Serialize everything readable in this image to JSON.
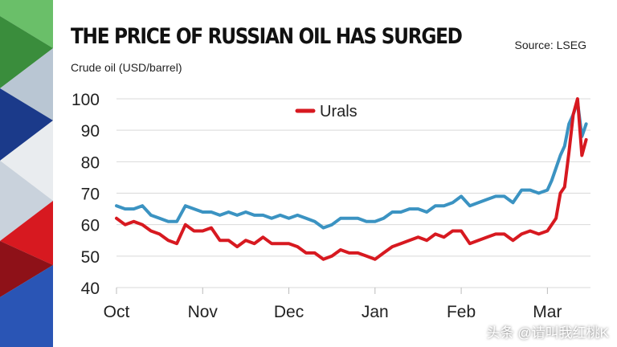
{
  "header": {
    "title": "THE PRICE OF RUSSIAN OIL HAS SURGED",
    "source": "Source: LSEG",
    "subtitle": "Crude oil (USD/barrel)"
  },
  "watermark": "头条 @请叫我红桃K",
  "colors": {
    "urals": "#d71920",
    "brent": "#3b93c2",
    "grid": "#d9d9d9"
  },
  "chart_data": {
    "type": "line",
    "title": "THE PRICE OF RUSSIAN OIL HAS SURGED",
    "ylabel": "Crude oil (USD/barrel)",
    "xlabel": "",
    "ylim": [
      40,
      100
    ],
    "yticks": [
      40,
      50,
      60,
      70,
      80,
      90,
      100
    ],
    "xticks": [
      "Oct",
      "Nov",
      "Dec",
      "Jan",
      "Feb",
      "Mar"
    ],
    "xlim": [
      0,
      5.5
    ],
    "grid": true,
    "legend": {
      "position": "top-center",
      "entries": [
        "Urals"
      ]
    },
    "series": [
      {
        "name": "Urals",
        "color": "#d71920",
        "x": [
          0,
          0.1,
          0.2,
          0.3,
          0.4,
          0.5,
          0.6,
          0.7,
          0.8,
          0.9,
          1.0,
          1.1,
          1.2,
          1.3,
          1.4,
          1.5,
          1.6,
          1.7,
          1.8,
          1.9,
          2.0,
          2.1,
          2.2,
          2.3,
          2.4,
          2.5,
          2.6,
          2.7,
          2.8,
          2.9,
          3.0,
          3.1,
          3.2,
          3.3,
          3.4,
          3.5,
          3.6,
          3.7,
          3.8,
          3.9,
          4.0,
          4.1,
          4.2,
          4.3,
          4.4,
          4.5,
          4.6,
          4.7,
          4.8,
          4.9,
          5.0,
          5.05,
          5.1,
          5.15,
          5.2,
          5.25,
          5.3,
          5.35,
          5.4,
          5.45
        ],
        "values": [
          62,
          60,
          61,
          60,
          58,
          57,
          55,
          54,
          60,
          58,
          58,
          59,
          55,
          55,
          53,
          55,
          54,
          56,
          54,
          54,
          54,
          53,
          51,
          51,
          49,
          50,
          52,
          51,
          51,
          50,
          49,
          51,
          53,
          54,
          55,
          56,
          55,
          57,
          56,
          58,
          58,
          54,
          55,
          56,
          57,
          57,
          55,
          57,
          58,
          57,
          58,
          60,
          62,
          70,
          72,
          83,
          95,
          100,
          82,
          87
        ]
      },
      {
        "name": "",
        "color": "#3b93c2",
        "x": [
          0,
          0.1,
          0.2,
          0.3,
          0.4,
          0.5,
          0.6,
          0.7,
          0.8,
          0.9,
          1.0,
          1.1,
          1.2,
          1.3,
          1.4,
          1.5,
          1.6,
          1.7,
          1.8,
          1.9,
          2.0,
          2.1,
          2.2,
          2.3,
          2.4,
          2.5,
          2.6,
          2.7,
          2.8,
          2.9,
          3.0,
          3.1,
          3.2,
          3.3,
          3.4,
          3.5,
          3.6,
          3.7,
          3.8,
          3.9,
          4.0,
          4.1,
          4.2,
          4.3,
          4.4,
          4.5,
          4.6,
          4.7,
          4.8,
          4.9,
          5.0,
          5.05,
          5.1,
          5.15,
          5.2,
          5.25,
          5.3,
          5.35,
          5.4,
          5.45
        ],
        "values": [
          66,
          65,
          65,
          66,
          63,
          62,
          61,
          61,
          66,
          65,
          64,
          64,
          63,
          64,
          63,
          64,
          63,
          63,
          62,
          63,
          62,
          63,
          62,
          61,
          59,
          60,
          62,
          62,
          62,
          61,
          61,
          62,
          64,
          64,
          65,
          65,
          64,
          66,
          66,
          67,
          69,
          66,
          67,
          68,
          69,
          69,
          67,
          71,
          71,
          70,
          71,
          74,
          78,
          82,
          85,
          92,
          95,
          99,
          88,
          92
        ]
      }
    ]
  }
}
